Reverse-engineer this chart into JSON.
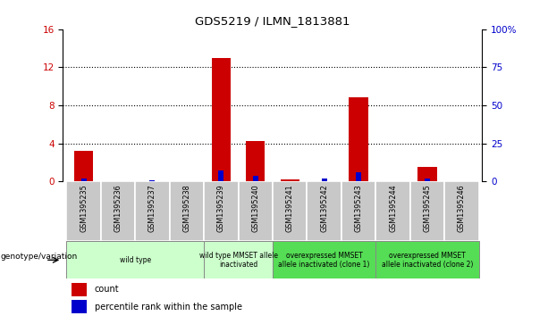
{
  "title": "GDS5219 / ILMN_1813881",
  "samples": [
    "GSM1395235",
    "GSM1395236",
    "GSM1395237",
    "GSM1395238",
    "GSM1395239",
    "GSM1395240",
    "GSM1395241",
    "GSM1395242",
    "GSM1395243",
    "GSM1395244",
    "GSM1395245",
    "GSM1395246"
  ],
  "count_values": [
    3.2,
    0,
    0,
    0,
    13.0,
    4.2,
    0.2,
    0,
    8.8,
    0,
    1.5,
    0
  ],
  "percentile_values": [
    2.0,
    0,
    0.6,
    0,
    7.0,
    3.5,
    0.4,
    2.0,
    6.2,
    0,
    2.0,
    0
  ],
  "ylim_left": [
    0,
    16
  ],
  "ylim_right": [
    0,
    100
  ],
  "yticks_left": [
    0,
    4,
    8,
    12,
    16
  ],
  "yticks_right": [
    0,
    25,
    50,
    75,
    100
  ],
  "count_color": "#cc0000",
  "percentile_color": "#0000cc",
  "genotype_groups": [
    {
      "label": "wild type",
      "start": 0,
      "end": 4,
      "color": "#ccffcc"
    },
    {
      "label": "wild type MMSET allele\ninactivated",
      "start": 4,
      "end": 6,
      "color": "#ccffcc"
    },
    {
      "label": "overexpressed MMSET\nallele inactivated (clone 1)",
      "start": 6,
      "end": 9,
      "color": "#55dd55"
    },
    {
      "label": "overexpressed MMSET\nallele inactivated (clone 2)",
      "start": 9,
      "end": 12,
      "color": "#55dd55"
    }
  ],
  "tick_bg_color": "#c8c8c8",
  "legend_count_label": "count",
  "legend_pct_label": "percentile rank within the sample",
  "genotype_label": "genotype/variation"
}
